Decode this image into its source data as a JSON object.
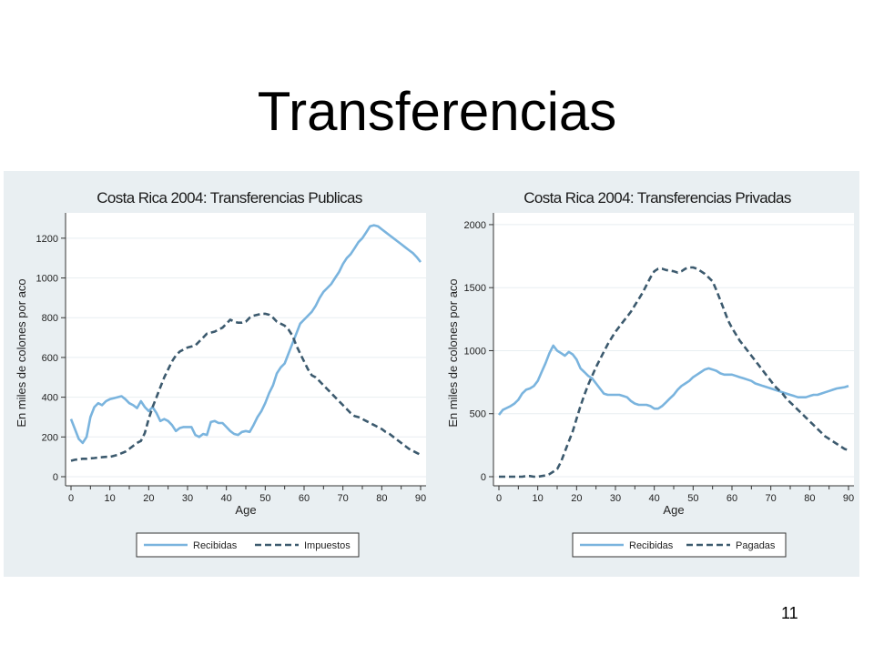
{
  "slide": {
    "title": "Transferencias",
    "page_number": "11"
  },
  "colors": {
    "recibidas": "#7ab4de",
    "dashed": "#3c5a6e",
    "panel_bg": "#e9eff2",
    "plot_bg": "#ffffff",
    "grid": "#e8eef1"
  },
  "chart_data": [
    {
      "type": "line",
      "title": "Costa Rica 2004: Transferencias Publicas",
      "xlabel": "Age",
      "ylabel": "En miles de colones por aco",
      "xlim": [
        0,
        90
      ],
      "ylim": [
        0,
        1300
      ],
      "xticks": [
        0,
        10,
        20,
        30,
        40,
        50,
        60,
        70,
        80,
        90
      ],
      "yticks": [
        0,
        200,
        400,
        600,
        800,
        1000,
        1200
      ],
      "grid": true,
      "legend_position": "bottom",
      "x": [
        0,
        1,
        2,
        3,
        4,
        5,
        6,
        7,
        8,
        9,
        10,
        11,
        12,
        13,
        14,
        15,
        16,
        17,
        18,
        19,
        20,
        21,
        22,
        23,
        24,
        25,
        26,
        27,
        28,
        29,
        30,
        31,
        32,
        33,
        34,
        35,
        36,
        37,
        38,
        39,
        40,
        41,
        42,
        43,
        44,
        45,
        46,
        47,
        48,
        49,
        50,
        51,
        52,
        53,
        54,
        55,
        56,
        57,
        58,
        59,
        60,
        61,
        62,
        63,
        64,
        65,
        66,
        67,
        68,
        69,
        70,
        71,
        72,
        73,
        74,
        75,
        76,
        77,
        78,
        79,
        80,
        81,
        82,
        83,
        84,
        85,
        86,
        87,
        88,
        89,
        90
      ],
      "series": [
        {
          "name": "Recibidas",
          "style": "solid",
          "values": [
            290,
            240,
            190,
            170,
            200,
            300,
            350,
            370,
            360,
            380,
            390,
            395,
            400,
            405,
            390,
            370,
            360,
            345,
            380,
            350,
            330,
            350,
            320,
            280,
            290,
            280,
            260,
            230,
            245,
            250,
            250,
            250,
            210,
            200,
            215,
            210,
            275,
            280,
            270,
            270,
            250,
            230,
            215,
            210,
            225,
            230,
            225,
            260,
            300,
            330,
            370,
            420,
            460,
            520,
            550,
            570,
            620,
            670,
            720,
            770,
            790,
            810,
            830,
            860,
            900,
            930,
            950,
            970,
            1000,
            1030,
            1070,
            1100,
            1120,
            1150,
            1180,
            1200,
            1230,
            1260,
            1265,
            1260,
            1245,
            1230,
            1215,
            1200,
            1185,
            1170,
            1155,
            1140,
            1125,
            1105,
            1080
          ]
        },
        {
          "name": "Impuestos",
          "style": "dashed",
          "values": [
            80,
            85,
            88,
            90,
            90,
            92,
            94,
            96,
            98,
            100,
            100,
            105,
            110,
            118,
            126,
            140,
            155,
            170,
            180,
            220,
            290,
            350,
            400,
            450,
            500,
            540,
            580,
            610,
            630,
            640,
            650,
            655,
            660,
            680,
            700,
            720,
            725,
            730,
            740,
            750,
            770,
            790,
            780,
            775,
            775,
            780,
            800,
            810,
            815,
            820,
            820,
            815,
            800,
            780,
            770,
            760,
            740,
            710,
            660,
            620,
            580,
            540,
            510,
            500,
            480,
            460,
            440,
            420,
            400,
            380,
            360,
            340,
            320,
            305,
            300,
            290,
            280,
            270,
            260,
            250,
            240,
            225,
            215,
            200,
            185,
            170,
            155,
            140,
            130,
            120,
            110
          ]
        }
      ]
    },
    {
      "type": "line",
      "title": "Costa Rica 2004: Transferencias Privadas",
      "xlabel": "Age",
      "ylabel": "En miles de colones por aco",
      "xlim": [
        0,
        90
      ],
      "ylim": [
        0,
        2050
      ],
      "xticks": [
        0,
        10,
        20,
        30,
        40,
        50,
        60,
        70,
        80,
        90
      ],
      "yticks": [
        0,
        500,
        1000,
        1500,
        2000
      ],
      "grid": true,
      "legend_position": "bottom",
      "x": [
        0,
        1,
        2,
        3,
        4,
        5,
        6,
        7,
        8,
        9,
        10,
        11,
        12,
        13,
        14,
        15,
        16,
        17,
        18,
        19,
        20,
        21,
        22,
        23,
        24,
        25,
        26,
        27,
        28,
        29,
        30,
        31,
        32,
        33,
        34,
        35,
        36,
        37,
        38,
        39,
        40,
        41,
        42,
        43,
        44,
        45,
        46,
        47,
        48,
        49,
        50,
        51,
        52,
        53,
        54,
        55,
        56,
        57,
        58,
        59,
        60,
        61,
        62,
        63,
        64,
        65,
        66,
        67,
        68,
        69,
        70,
        71,
        72,
        73,
        74,
        75,
        76,
        77,
        78,
        79,
        80,
        81,
        82,
        83,
        84,
        85,
        86,
        87,
        88,
        89,
        90
      ],
      "series": [
        {
          "name": "Recibidas",
          "style": "solid",
          "values": [
            490,
            530,
            545,
            560,
            580,
            610,
            660,
            690,
            700,
            720,
            760,
            830,
            900,
            980,
            1040,
            1000,
            980,
            960,
            990,
            970,
            930,
            860,
            830,
            800,
            780,
            740,
            700,
            660,
            650,
            650,
            650,
            650,
            640,
            630,
            600,
            580,
            570,
            570,
            570,
            560,
            540,
            540,
            560,
            590,
            620,
            650,
            690,
            720,
            740,
            760,
            790,
            810,
            830,
            850,
            860,
            850,
            840,
            820,
            810,
            810,
            810,
            800,
            790,
            780,
            770,
            760,
            740,
            730,
            720,
            710,
            700,
            690,
            680,
            670,
            660,
            650,
            640,
            630,
            630,
            630,
            640,
            650,
            650,
            660,
            670,
            680,
            690,
            700,
            705,
            710,
            720
          ]
        },
        {
          "name": "Pagadas",
          "style": "dashed",
          "values": [
            0,
            0,
            0,
            0,
            0,
            0,
            0,
            5,
            5,
            0,
            0,
            5,
            10,
            20,
            40,
            60,
            120,
            200,
            280,
            360,
            460,
            560,
            650,
            730,
            800,
            870,
            930,
            990,
            1050,
            1100,
            1150,
            1190,
            1230,
            1270,
            1310,
            1360,
            1410,
            1460,
            1520,
            1580,
            1630,
            1650,
            1650,
            1640,
            1635,
            1630,
            1620,
            1630,
            1650,
            1660,
            1660,
            1650,
            1630,
            1610,
            1580,
            1550,
            1480,
            1400,
            1320,
            1240,
            1180,
            1130,
            1080,
            1040,
            1000,
            960,
            920,
            880,
            840,
            800,
            760,
            720,
            690,
            660,
            620,
            590,
            560,
            530,
            500,
            470,
            440,
            410,
            380,
            350,
            320,
            300,
            280,
            260,
            240,
            220,
            210
          ]
        }
      ]
    }
  ]
}
